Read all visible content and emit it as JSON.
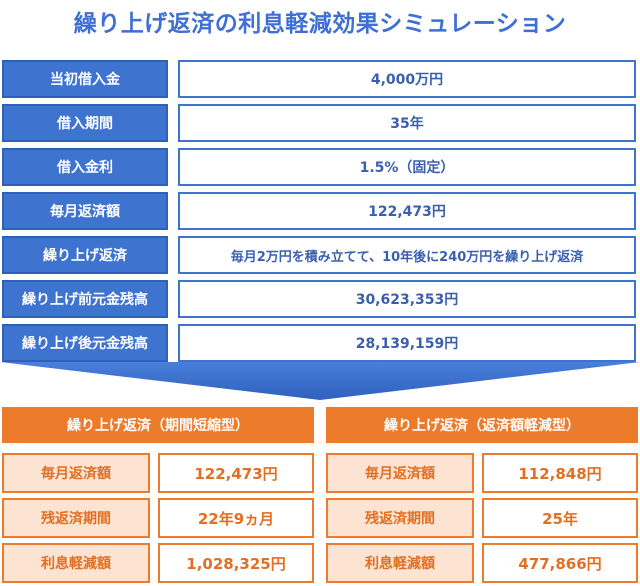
{
  "title": "繰り上げ返済の利息軽減効果シミュレーション",
  "conditions": [
    {
      "label": "当初借入金",
      "value": "4,000万円"
    },
    {
      "label": "借入期間",
      "value": "35年"
    },
    {
      "label": "借入金利",
      "value": "1.5%（固定）"
    },
    {
      "label": "毎月返済額",
      "value": "122,473円"
    },
    {
      "label": "繰り上げ返済",
      "value": "毎月2万円を積み立てて、10年後に240万円を繰り上げ返済"
    },
    {
      "label": "繰り上げ前元金残高",
      "value": "30,623,353円"
    },
    {
      "label": "繰り上げ後元金残高",
      "value": "28,139,159円"
    }
  ],
  "results": [
    {
      "heading": "繰り上げ返済（期間短縮型）",
      "rows": [
        {
          "label": "毎月返済額",
          "value": "122,473円"
        },
        {
          "label": "残返済期間",
          "value": "22年9ヵ月"
        },
        {
          "label": "利息軽減額",
          "value": "1,028,325円"
        }
      ]
    },
    {
      "heading": "繰り上げ返済（返済額軽減型）",
      "rows": [
        {
          "label": "毎月返済額",
          "value": "112,848円"
        },
        {
          "label": "残返済期間",
          "value": "25年"
        },
        {
          "label": "利息軽減額",
          "value": "477,866円"
        }
      ]
    }
  ],
  "colors": {
    "title": "#3f6fd4",
    "blue_label": "#3f73d0",
    "arrow": "#3f73d0",
    "orange_head": "#ec7b2c",
    "orange_label_bg": "#fde3d2",
    "orange_text": "#e26f22"
  },
  "icons": {
    "divider_arrow": "down-chevron-arrow"
  }
}
